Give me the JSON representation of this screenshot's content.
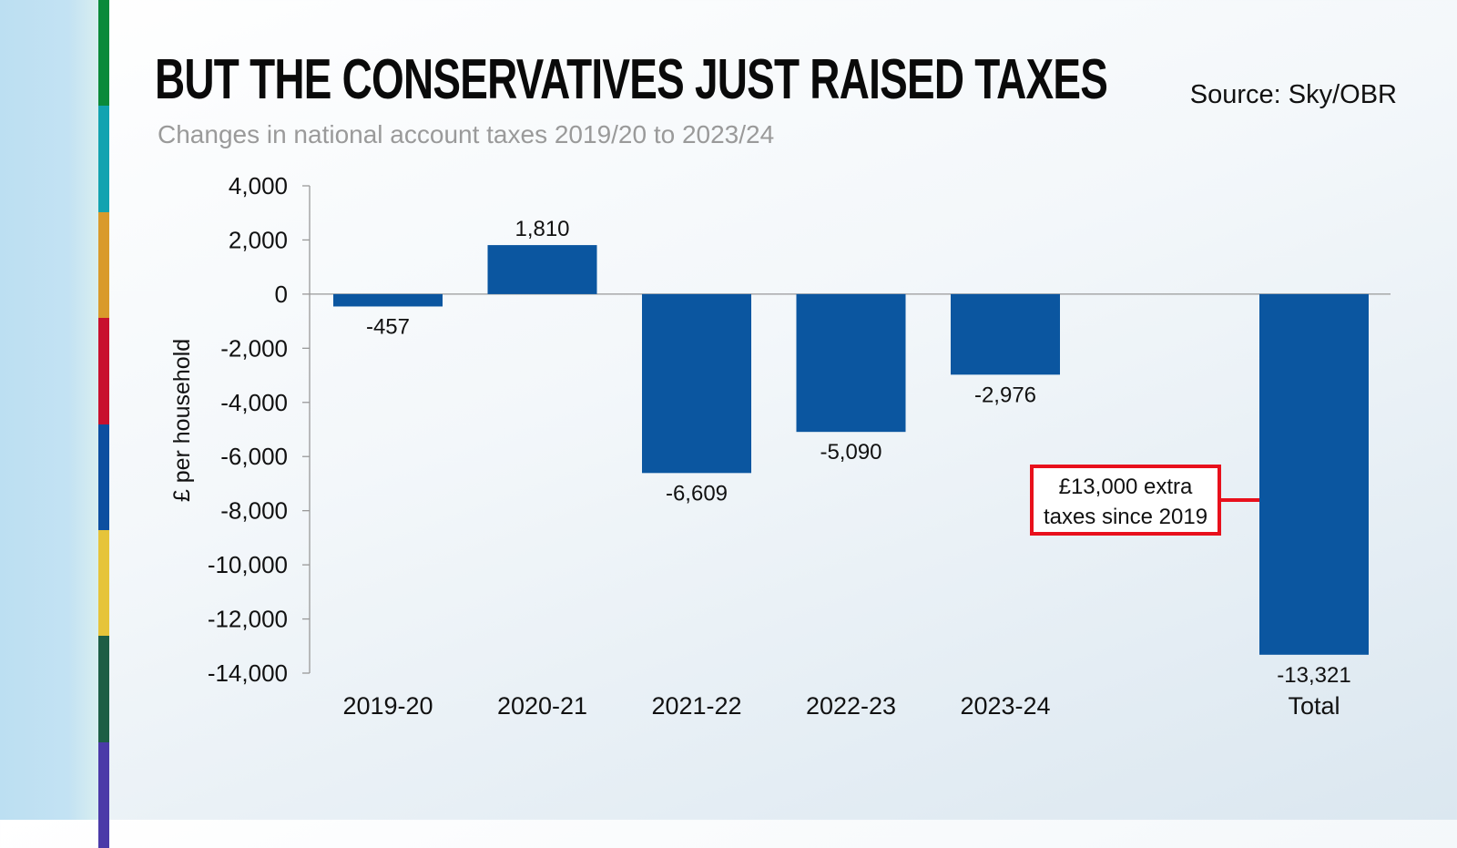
{
  "stripe_colors": [
    "#0a8a3a",
    "#12a3b0",
    "#d99a2b",
    "#c8102e",
    "#0d4fa0",
    "#e6c43a",
    "#1d5e45",
    "#4b3aa8"
  ],
  "header": {
    "title": "BUT THE CONSERVATIVES JUST RAISED TAXES",
    "subtitle": "Changes in national account taxes 2019/20 to 2023/24",
    "source": "Source: Sky/OBR"
  },
  "chart_data": {
    "type": "bar",
    "title": "BUT THE CONSERVATIVES JUST RAISED TAXES",
    "subtitle": "Changes in national account taxes 2019/20 to 2023/24",
    "ylabel": "£ per household",
    "xlabel": "",
    "categories": [
      "2019-20",
      "2020-21",
      "2021-22",
      "2022-23",
      "2023-24",
      "",
      "Total"
    ],
    "values": [
      -457,
      1810,
      -6609,
      -5090,
      -2976,
      null,
      -13321
    ],
    "data_labels": [
      "-457",
      "1,810",
      "-6,609",
      "-5,090",
      "-2,976",
      "",
      "-13,321"
    ],
    "ylim": [
      -14000,
      4000
    ],
    "yticks": [
      4000,
      2000,
      0,
      -2000,
      -4000,
      -6000,
      -8000,
      -10000,
      -12000,
      -14000
    ],
    "ytick_labels": [
      "4,000",
      "2,000",
      "0",
      "-2,000",
      "-4,000",
      "-6,000",
      "-8,000",
      "-10,000",
      "-12,000",
      "-14,000"
    ],
    "bar_color": "#0b56a0",
    "grid": false,
    "annotation": {
      "lines": [
        "£13,000 extra",
        "taxes since 2019"
      ],
      "target": "Total",
      "border_color": "#e8101c"
    }
  }
}
